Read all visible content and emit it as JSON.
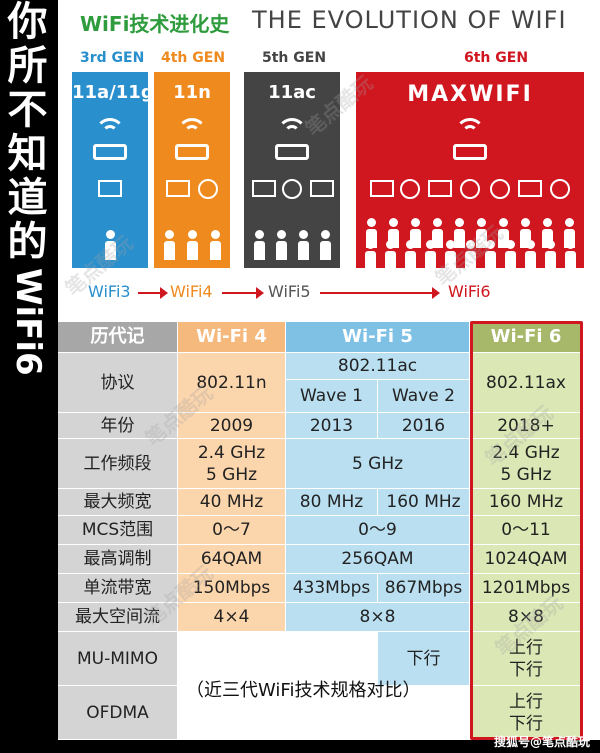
{
  "side_title": {
    "chars": [
      "你",
      "所",
      "不",
      "知",
      "道",
      "的"
    ],
    "latin": "WiFi6"
  },
  "header": {
    "cn": "WiFi技术进化史",
    "en": "THE EVOLUTION OF WIFI"
  },
  "generations": [
    {
      "gen": "3rd GEN",
      "std": "11a/11g",
      "label": "WiFi3",
      "color": "#2a8fcd",
      "label_color": "#2a8fcd"
    },
    {
      "gen": "4th GEN",
      "std": "11n",
      "label": "WiFi4",
      "color": "#ef8a1f",
      "label_color": "#ef8a1f"
    },
    {
      "gen": "5th GEN",
      "std": "11ac",
      "label": "WiFi5",
      "color": "#444444",
      "label_color": "#555555"
    },
    {
      "gen": "6th GEN",
      "std": "MAXWIFI",
      "label": "WiFi6",
      "color": "#d0161f",
      "label_color": "#d0161f"
    }
  ],
  "table": {
    "col_headers": [
      "历代记",
      "Wi-Fi 4",
      "Wi-Fi 5",
      "Wi-Fi 6"
    ],
    "rows": {
      "protocol": {
        "label": "协议",
        "wifi4": "802.11n",
        "wifi5": "802.11ac",
        "wave1": "Wave 1",
        "wave2": "Wave 2",
        "wifi6": "802.11ax"
      },
      "year": {
        "label": "年份",
        "wifi4": "2009",
        "wave1": "2013",
        "wave2": "2016",
        "wifi6": "2018+"
      },
      "band": {
        "label": "工作频段",
        "wifi4_a": "2.4 GHz",
        "wifi4_b": "5 GHz",
        "wifi5": "5 GHz",
        "wifi6_a": "2.4 GHz",
        "wifi6_b": "5 GHz"
      },
      "bandwidth": {
        "label": "最大频宽",
        "wifi4": "40 MHz",
        "wave1": "80 MHz",
        "wave2": "160 MHz",
        "wifi6": "160 MHz"
      },
      "mcs": {
        "label": "MCS范围",
        "wifi4": "0～7",
        "wifi5": "0～9",
        "wifi6": "0～11"
      },
      "modulation": {
        "label": "最高调制",
        "wifi4": "64QAM",
        "wifi5": "256QAM",
        "wifi6": "1024QAM"
      },
      "rate": {
        "label": "单流带宽",
        "wifi4": "150Mbps",
        "wave1": "433Mbps",
        "wave2": "867Mbps",
        "wifi6": "1201Mbps"
      },
      "streams": {
        "label": "最大空间流",
        "wifi4": "4×4",
        "wifi5": "8×8",
        "wifi6": "8×8"
      },
      "mumimo": {
        "label": "MU-MIMO",
        "wave2": "下行",
        "wifi6_a": "上行",
        "wifi6_b": "下行"
      },
      "ofdma": {
        "label": "OFDMA",
        "wifi6_a": "上行",
        "wifi6_b": "下行"
      }
    },
    "caption": "（近三代WiFi技术规格对比）"
  },
  "watermark": "笔点酷玩",
  "footer": "搜狐号@笔点酷玩"
}
